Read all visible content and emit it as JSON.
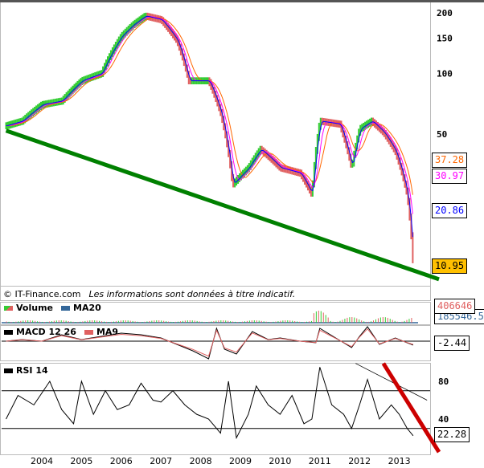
{
  "chart_data": [
    {
      "type": "candlestick",
      "panel": "price",
      "y_scale": "log",
      "ylim": [
        9,
        210
      ],
      "y_ticks": [
        "200",
        "150",
        "100",
        "50"
      ],
      "x_ticks": [
        "2004",
        "2005",
        "2006",
        "2007",
        "2008",
        "2009",
        "2010",
        "2011",
        "2012",
        "2013"
      ],
      "series": [
        {
          "name": "price",
          "x": [
            2003.1,
            2003.5,
            2004.0,
            2004.5,
            2005.0,
            2005.5,
            2006.0,
            2006.3,
            2006.6,
            2007.0,
            2007.4,
            2007.7,
            2008.2,
            2008.5,
            2008.8,
            2009.2,
            2009.5,
            2010.0,
            2010.5,
            2010.8,
            2011.0,
            2011.5,
            2011.8,
            2012.0,
            2012.3,
            2012.6,
            2012.9,
            2013.2,
            2013.35
          ],
          "y": [
            55,
            58,
            70,
            73,
            92,
            100,
            153,
            175,
            193,
            185,
            146,
            92,
            92,
            64,
            28,
            34,
            42,
            34,
            32,
            25,
            58,
            56,
            34,
            53,
            58,
            51,
            41,
            25,
            10.95
          ]
        }
      ],
      "last_values": {
        "ma_long": "37.28",
        "ma_mid": "30.97",
        "ma_short": "20.86",
        "price": "10.95"
      },
      "colors": {
        "ma_long": "#ff6600",
        "ma_mid": "#ff00ff",
        "ma_short": "#0000ff",
        "price_box": "#ffc000",
        "up": "#33cc33",
        "down": "#e06060",
        "trendline": "#008000"
      },
      "trendline": {
        "from": [
          2003.1,
          52
        ],
        "to": [
          2014.0,
          9.5
        ]
      }
    },
    {
      "type": "bar",
      "panel": "volume",
      "legend": [
        "Volume",
        "MA20"
      ],
      "last_values": {
        "volume": "406646",
        "ma20": "185546.5"
      }
    },
    {
      "type": "line",
      "panel": "macd",
      "legend": [
        "MACD 12 26",
        "MA9"
      ],
      "x": [
        2003.1,
        2003.5,
        2004.0,
        2004.5,
        2005.0,
        2005.5,
        2006.0,
        2006.5,
        2007.0,
        2007.5,
        2007.8,
        2008.2,
        2008.4,
        2008.6,
        2008.9,
        2009.3,
        2009.7,
        2010.0,
        2010.5,
        2010.9,
        2011.0,
        2011.4,
        2011.8,
        2012.0,
        2012.2,
        2012.5,
        2012.9,
        2013.2,
        2013.35
      ],
      "y": [
        0,
        1,
        0,
        4,
        1,
        3,
        5,
        4,
        2,
        -3,
        -6,
        -11,
        8,
        -5,
        -8,
        6,
        1,
        2,
        0,
        -1,
        8,
        2,
        -4,
        3,
        9,
        -2,
        2,
        -1,
        -2.44
      ],
      "last_value": "-2.44"
    },
    {
      "type": "line",
      "panel": "rsi",
      "legend": [
        "RSI 14"
      ],
      "y_ticks": [
        "80",
        "40"
      ],
      "levels": [
        70,
        30
      ],
      "x": [
        2003.1,
        2003.4,
        2003.8,
        2004.2,
        2004.5,
        2004.8,
        2005.0,
        2005.3,
        2005.6,
        2005.9,
        2006.2,
        2006.5,
        2006.8,
        2007.0,
        2007.3,
        2007.6,
        2007.9,
        2008.2,
        2008.5,
        2008.7,
        2008.9,
        2009.2,
        2009.4,
        2009.7,
        2010.0,
        2010.3,
        2010.6,
        2010.8,
        2011.0,
        2011.3,
        2011.6,
        2011.8,
        2012.0,
        2012.2,
        2012.5,
        2012.8,
        2013.0,
        2013.2,
        2013.35
      ],
      "y": [
        40,
        65,
        55,
        80,
        50,
        35,
        80,
        45,
        70,
        50,
        55,
        78,
        60,
        58,
        70,
        55,
        45,
        40,
        25,
        80,
        20,
        45,
        75,
        55,
        45,
        65,
        35,
        40,
        95,
        55,
        45,
        30,
        55,
        82,
        40,
        55,
        45,
        30,
        22.28
      ],
      "last_value": "22.28",
      "trendlines": [
        {
          "from": [
            2011.9,
            99
          ],
          "to": [
            2013.7,
            60
          ]
        },
        {
          "from": [
            2012.6,
            99
          ],
          "to": [
            2014.0,
            5
          ],
          "color": "#cc0000"
        }
      ]
    }
  ],
  "footer": {
    "copyright": "© IT-Finance.com",
    "disclaimer": "Les informations sont données à titre indicatif."
  }
}
